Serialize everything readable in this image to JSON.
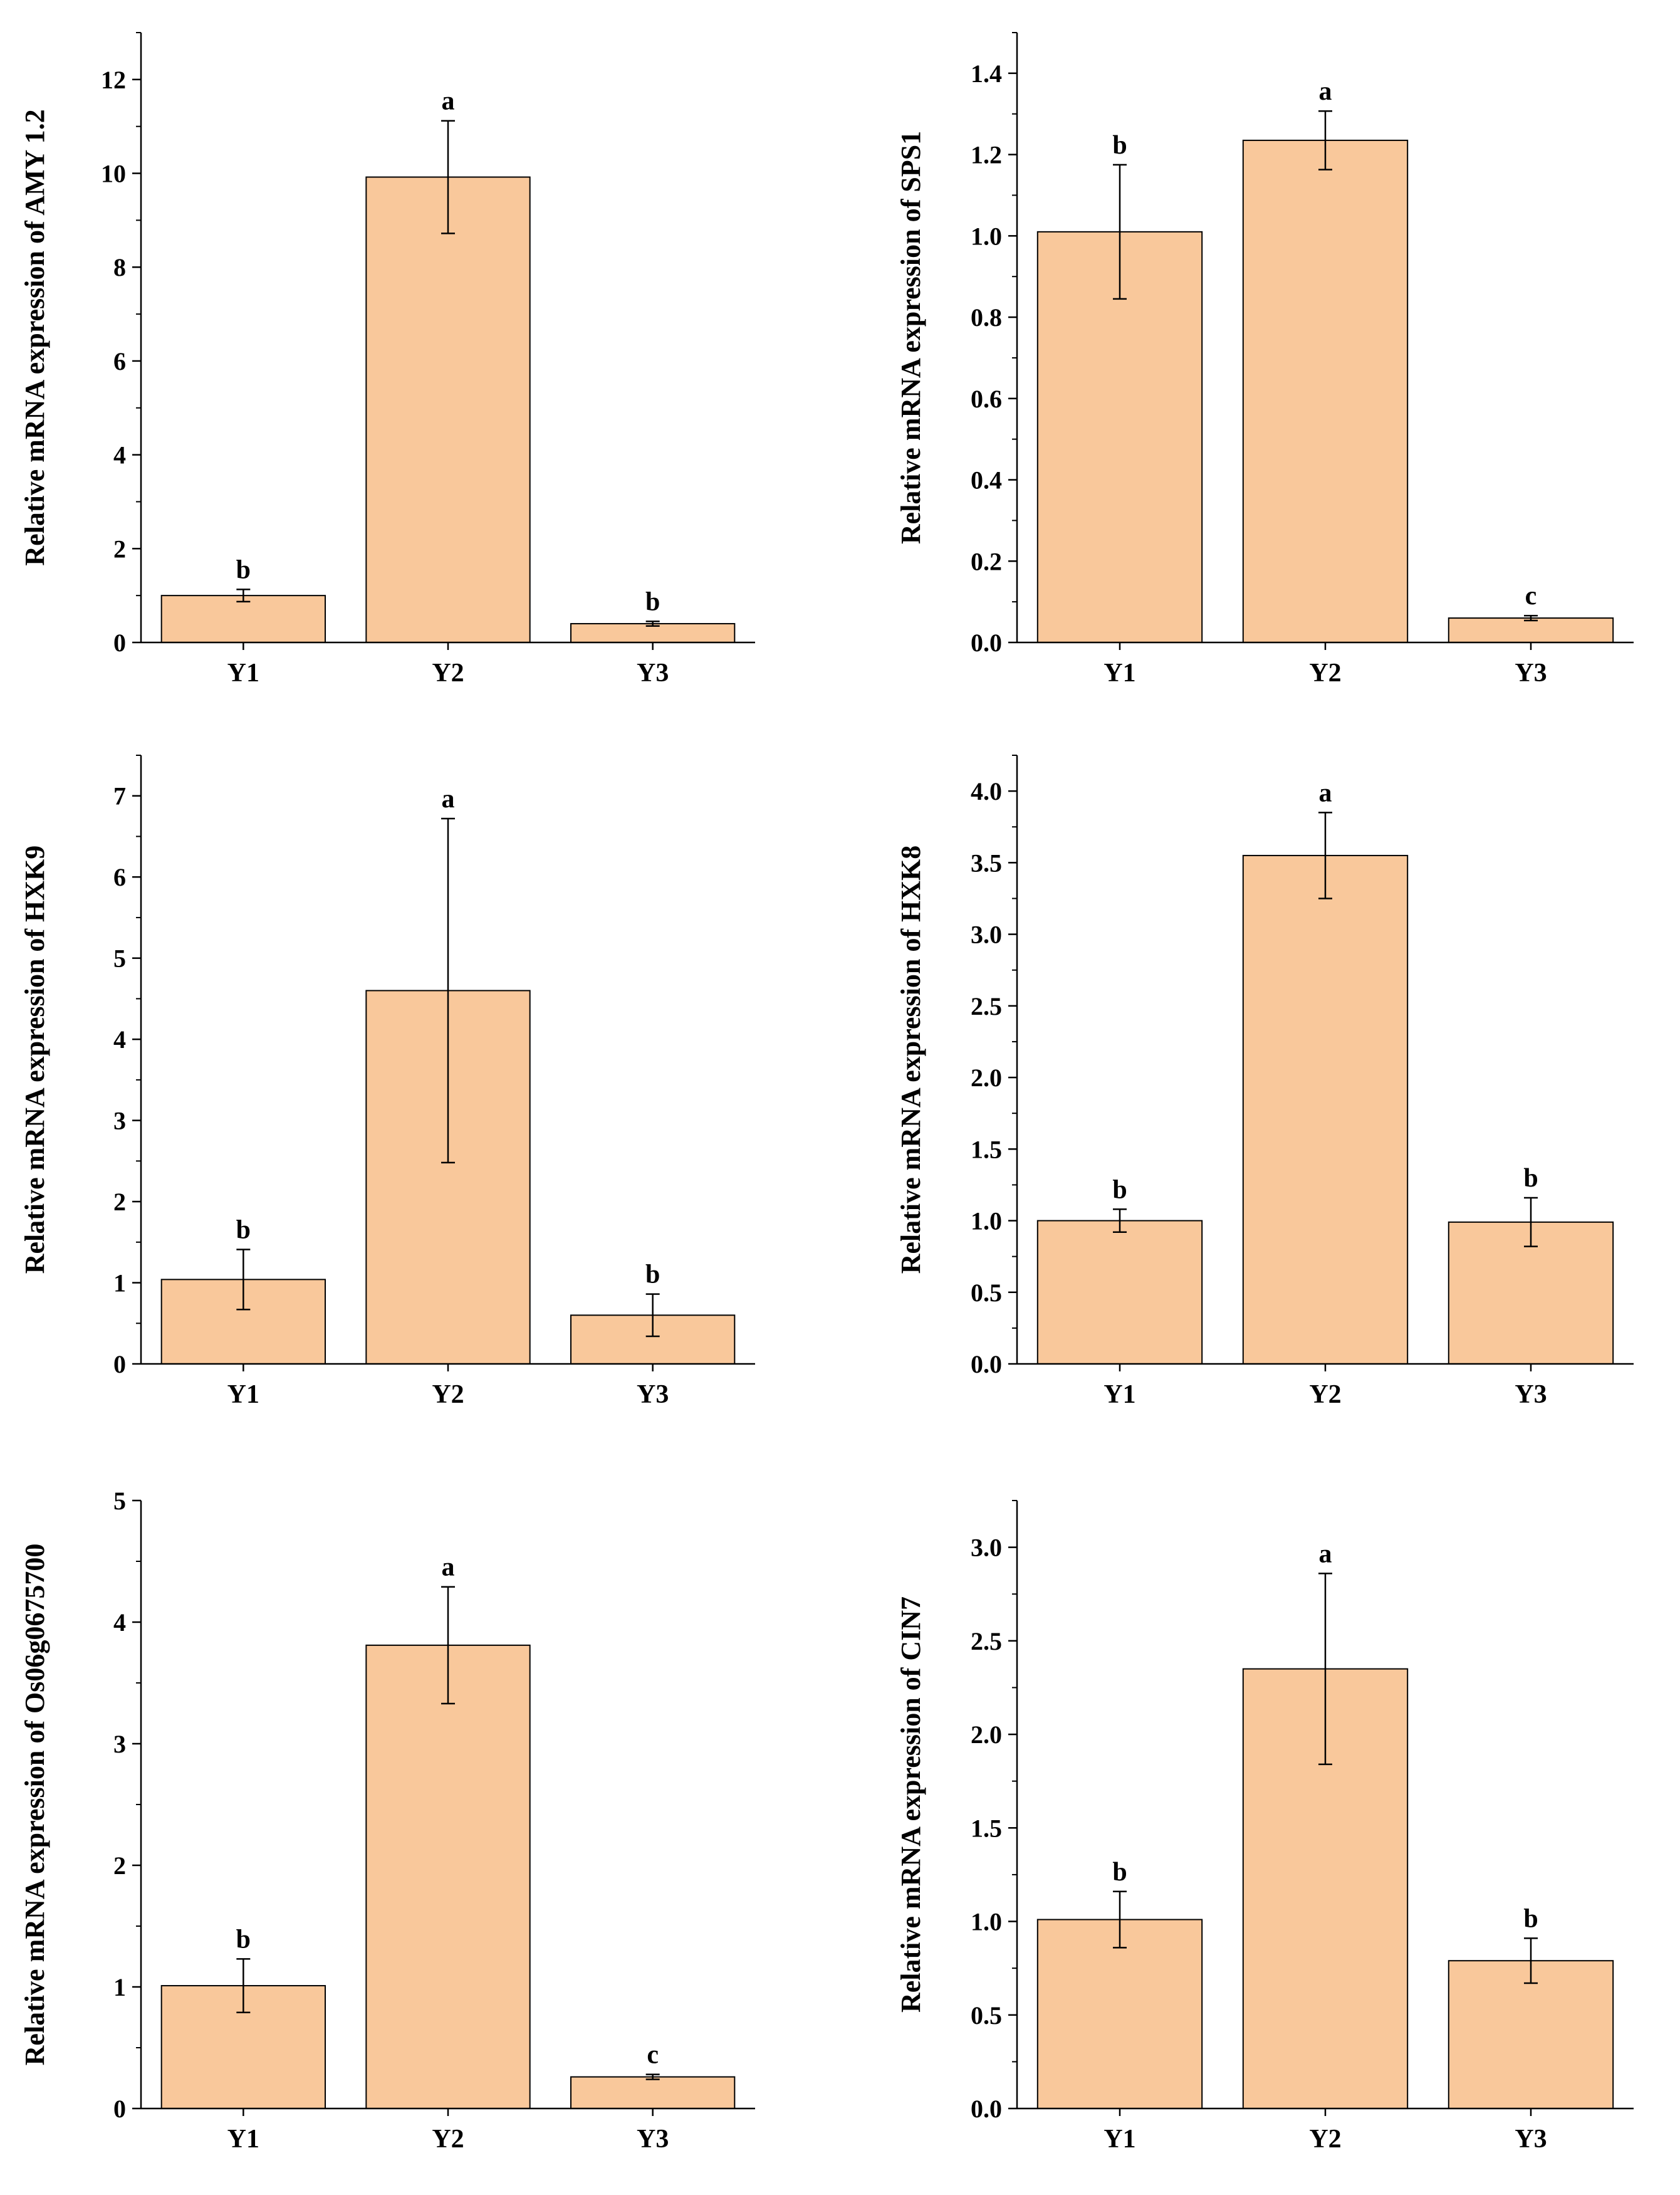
{
  "figure": {
    "bar_color": "#f9c89b",
    "bar_stroke": "#000000"
  },
  "chart_data": [
    {
      "type": "bar",
      "ylabel": "Relative mRNA expression of AMY 1.2",
      "categories": [
        "Y1",
        "Y2",
        "Y3"
      ],
      "values": [
        1.0,
        9.92,
        0.4
      ],
      "errors": [
        0.13,
        1.2,
        0.05
      ],
      "labels": [
        "b",
        "a",
        "b"
      ],
      "ylim": [
        0,
        13
      ],
      "yticks": [
        "0",
        "2",
        "4",
        "6",
        "8",
        "10",
        "12"
      ],
      "ytick_values": [
        0,
        2,
        4,
        6,
        8,
        10,
        12
      ]
    },
    {
      "type": "bar",
      "ylabel": "Relative mRNA expression of SPS1",
      "categories": [
        "Y1",
        "Y2",
        "Y3"
      ],
      "values": [
        1.01,
        1.235,
        0.06
      ],
      "errors": [
        0.165,
        0.072,
        0.006
      ],
      "labels": [
        "b",
        "a",
        "c"
      ],
      "ylim": [
        0,
        1.5
      ],
      "yticks": [
        "0.0",
        "0.2",
        "0.4",
        "0.6",
        "0.8",
        "1.0",
        "1.2",
        "1.4"
      ],
      "ytick_values": [
        0,
        0.2,
        0.4,
        0.6,
        0.8,
        1.0,
        1.2,
        1.4
      ]
    },
    {
      "type": "bar",
      "ylabel": "Relative mRNA expression of HXK9",
      "categories": [
        "Y1",
        "Y2",
        "Y3"
      ],
      "values": [
        1.04,
        4.6,
        0.6
      ],
      "errors": [
        0.37,
        2.12,
        0.26
      ],
      "labels": [
        "b",
        "a",
        "b"
      ],
      "ylim": [
        0,
        7.5
      ],
      "yticks": [
        "0",
        "1",
        "2",
        "3",
        "4",
        "5",
        "6",
        "7"
      ],
      "ytick_values": [
        0,
        1,
        2,
        3,
        4,
        5,
        6,
        7
      ]
    },
    {
      "type": "bar",
      "ylabel": "Relative mRNA expression of HXK8",
      "categories": [
        "Y1",
        "Y2",
        "Y3"
      ],
      "values": [
        1.0,
        3.55,
        0.99
      ],
      "errors": [
        0.08,
        0.3,
        0.17
      ],
      "labels": [
        "b",
        "a",
        "b"
      ],
      "ylim": [
        0,
        4.25
      ],
      "yticks": [
        "0.0",
        "0.5",
        "1.0",
        "1.5",
        "2.0",
        "2.5",
        "3.0",
        "3.5",
        "4.0"
      ],
      "ytick_values": [
        0,
        0.5,
        1.0,
        1.5,
        2.0,
        2.5,
        3.0,
        3.5,
        4.0
      ]
    },
    {
      "type": "bar",
      "ylabel": "Relative mRNA expression of Os06g0675700",
      "categories": [
        "Y1",
        "Y2",
        "Y3"
      ],
      "values": [
        1.01,
        3.81,
        0.26
      ],
      "errors": [
        0.22,
        0.48,
        0.02
      ],
      "labels": [
        "b",
        "a",
        "c"
      ],
      "ylim": [
        0,
        5
      ],
      "yticks": [
        "0",
        "1",
        "2",
        "3",
        "4",
        "5"
      ],
      "ytick_values": [
        0,
        1,
        2,
        3,
        4,
        5
      ]
    },
    {
      "type": "bar",
      "ylabel": "Relative mRNA expression of CIN7",
      "categories": [
        "Y1",
        "Y2",
        "Y3"
      ],
      "values": [
        1.01,
        2.35,
        0.79
      ],
      "errors": [
        0.15,
        0.51,
        0.12
      ],
      "labels": [
        "b",
        "a",
        "b"
      ],
      "ylim": [
        0,
        3.25
      ],
      "yticks": [
        "0.0",
        "0.5",
        "1.0",
        "1.5",
        "2.0",
        "2.5",
        "3.0"
      ],
      "ytick_values": [
        0,
        0.5,
        1.0,
        1.5,
        2.0,
        2.5,
        3.0
      ]
    }
  ]
}
